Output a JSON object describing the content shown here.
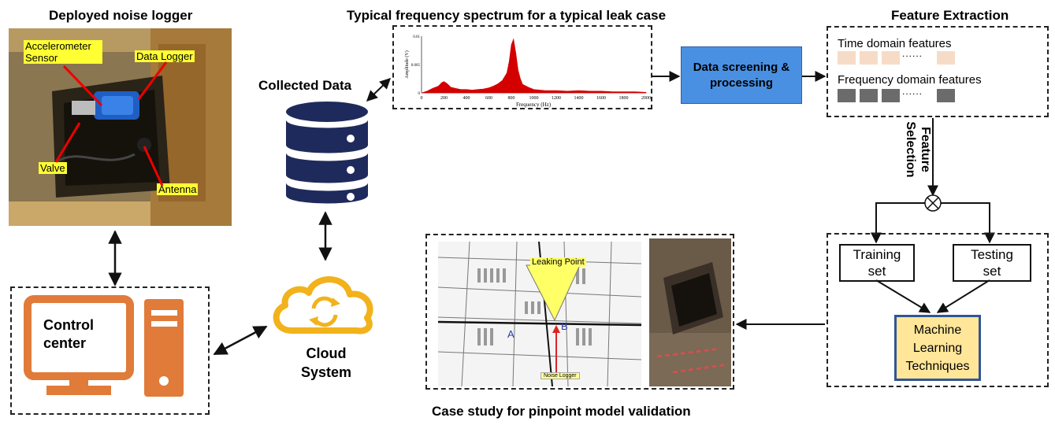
{
  "titles": {
    "logger": "Deployed noise logger",
    "spectrum": "Typical frequency spectrum for a typical leak case",
    "features": "Feature Extraction",
    "casestudy": "Case study for pinpoint model validation"
  },
  "photo_labels": {
    "accelerometer": "Accelerometer Sensor",
    "datalogger": "Data Logger",
    "valve": "Valve",
    "antenna": "Antenna"
  },
  "collected_data": "Collected Data",
  "control_center": "Control center",
  "cloud": "Cloud System",
  "screening": "Data screening & processing",
  "features": {
    "time": "Time domain features",
    "frequency": "Frequency domain features",
    "dots": "......",
    "selection": "Feature Selection"
  },
  "sets": {
    "training": "Training set",
    "testing": "Testing set",
    "ml": "Machine Learning Techniques"
  },
  "map": {
    "leaking_point": "Leaking Point",
    "a": "A",
    "b": "B",
    "noise_logger": "Noise Logger"
  },
  "chart_data": {
    "type": "area",
    "xlabel": "Frequency (Hz)",
    "ylabel": "Amplitude (V)",
    "xlim": [
      0,
      2000
    ],
    "ylim": [
      0,
      0.01
    ],
    "xticks": [
      "0",
      "200",
      "400",
      "600",
      "800",
      "1000",
      "1200",
      "1400",
      "1600",
      "1800",
      "2000"
    ],
    "yticks": [
      "0",
      "0.005",
      "0.01"
    ],
    "x": [
      0,
      50,
      100,
      150,
      180,
      200,
      230,
      260,
      300,
      350,
      400,
      450,
      500,
      550,
      600,
      640,
      680,
      720,
      760,
      780,
      800,
      820,
      840,
      860,
      880,
      900,
      950,
      1000,
      1100,
      1200,
      1300,
      1400,
      1500,
      1600,
      1700,
      1800,
      1900,
      2000
    ],
    "y": [
      0,
      0.0003,
      0.0008,
      0.0012,
      0.0018,
      0.002,
      0.0016,
      0.001,
      0.0008,
      0.0006,
      0.0006,
      0.0005,
      0.0006,
      0.0007,
      0.0009,
      0.0012,
      0.0016,
      0.0022,
      0.0035,
      0.0055,
      0.0085,
      0.0095,
      0.007,
      0.004,
      0.0025,
      0.0015,
      0.001,
      0.0006,
      0.0004,
      0.0004,
      0.0003,
      0.0004,
      0.0003,
      0.0003,
      0.0002,
      0.0002,
      0.0002,
      0.0001
    ],
    "color": "#d40000"
  },
  "colors": {
    "screening_fill": "#4a90e2",
    "ml_fill": "#ffe699",
    "ml_border": "#2f5597",
    "orange": "#e07b39",
    "navy": "#1f2a5c",
    "cloud": "#f2b21b",
    "time_feature": "#f6dcc7",
    "freq_feature": "#6b6b6b"
  }
}
